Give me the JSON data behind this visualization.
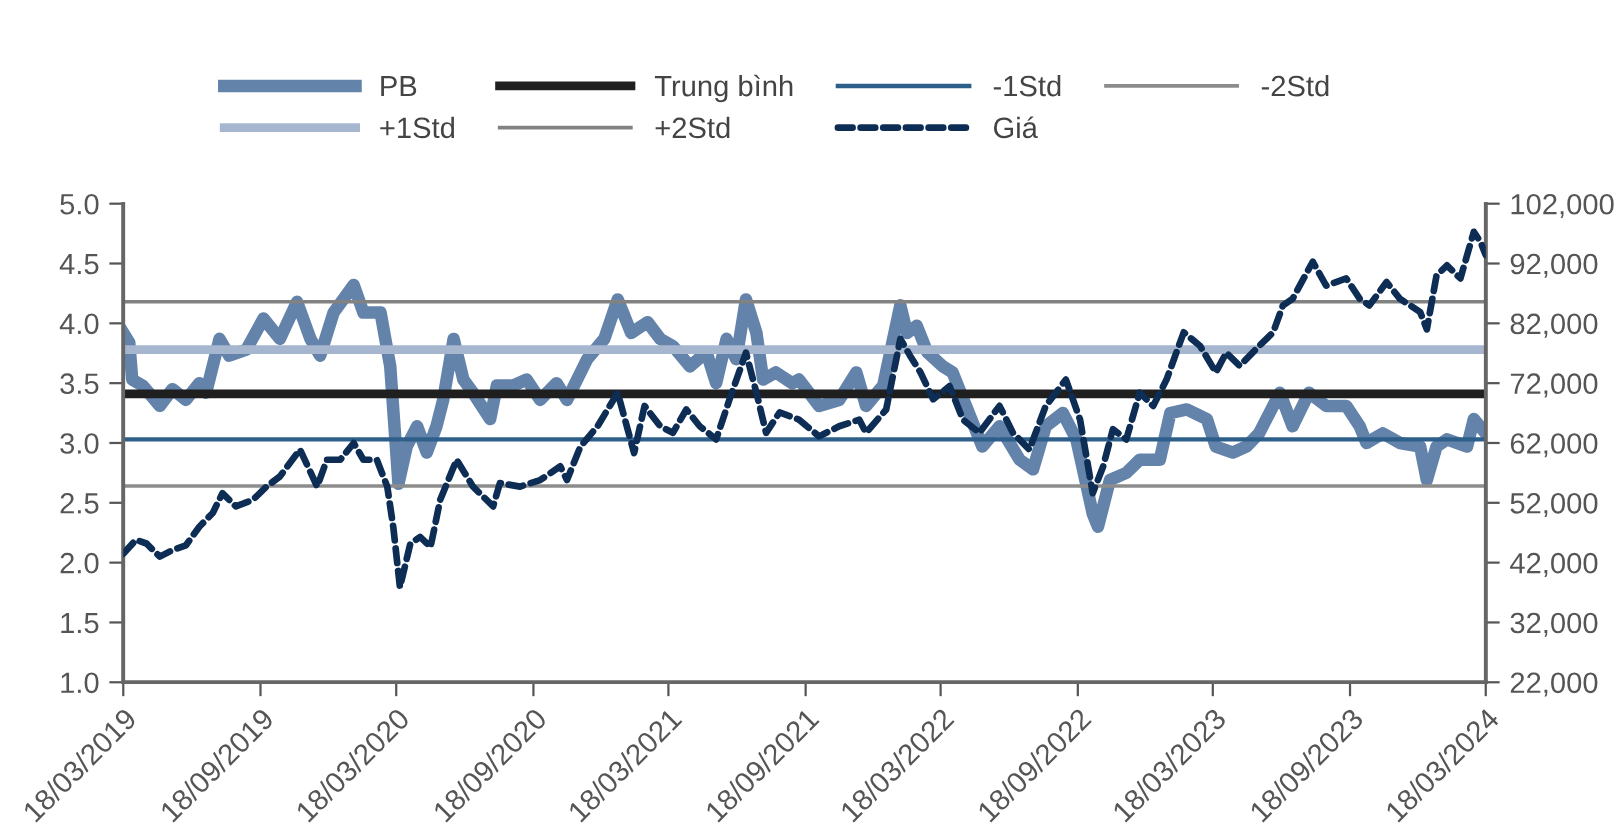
{
  "chart_data": {
    "type": "line",
    "xlim": [
      "2019-03-18",
      "2024-03-18"
    ],
    "xticks": [
      {
        "value": "2019-03-18",
        "label": "18/03/2019"
      },
      {
        "value": "2019-09-18",
        "label": "18/09/2019"
      },
      {
        "value": "2020-03-18",
        "label": "18/03/2020"
      },
      {
        "value": "2020-09-18",
        "label": "18/09/2020"
      },
      {
        "value": "2021-03-18",
        "label": "18/03/2021"
      },
      {
        "value": "2021-09-18",
        "label": "18/09/2021"
      },
      {
        "value": "2022-03-18",
        "label": "18/03/2022"
      },
      {
        "value": "2022-09-18",
        "label": "18/09/2022"
      },
      {
        "value": "2023-03-18",
        "label": "18/03/2023"
      },
      {
        "value": "2023-09-18",
        "label": "18/09/2023"
      },
      {
        "value": "2024-03-18",
        "label": "18/03/2024"
      }
    ],
    "ylim": [
      1.0,
      5.0
    ],
    "yticks": [
      {
        "value": 1.0,
        "label": "1.0"
      },
      {
        "value": 1.5,
        "label": "1.5"
      },
      {
        "value": 2.0,
        "label": "2.0"
      },
      {
        "value": 2.5,
        "label": "2.5"
      },
      {
        "value": 3.0,
        "label": "3.0"
      },
      {
        "value": 3.5,
        "label": "3.5"
      },
      {
        "value": 4.0,
        "label": "4.0"
      },
      {
        "value": 4.5,
        "label": "4.5"
      },
      {
        "value": 5.0,
        "label": "5.0"
      }
    ],
    "y2lim": [
      22000,
      102000
    ],
    "y2ticks": [
      {
        "value": 22000,
        "label": "22,000"
      },
      {
        "value": 32000,
        "label": "32,000"
      },
      {
        "value": 42000,
        "label": "42,000"
      },
      {
        "value": 52000,
        "label": "52,000"
      },
      {
        "value": 62000,
        "label": "62,000"
      },
      {
        "value": 72000,
        "label": "72,000"
      },
      {
        "value": 82000,
        "label": "82,000"
      },
      {
        "value": 92000,
        "label": "92,000"
      },
      {
        "value": 102000,
        "label": "102,000"
      }
    ],
    "grid": false,
    "legend": "top",
    "series": [
      {
        "name": "PB",
        "color": "#6383ab",
        "line_style": "solid",
        "x": [
          "2019-03-18",
          "2019-03-26",
          "2019-03-30",
          "2019-04-13",
          "2019-05-06",
          "2019-05-23",
          "2019-06-10",
          "2019-06-28",
          "2019-07-07",
          "2019-07-25",
          "2019-08-07",
          "2019-08-30",
          "2019-09-22",
          "2019-10-14",
          "2019-11-06",
          "2019-11-24",
          "2019-12-07",
          "2019-12-25",
          "2020-01-21",
          "2020-02-03",
          "2020-02-26",
          "2020-03-10",
          "2020-03-21",
          "2020-04-01",
          "2020-04-15",
          "2020-04-28",
          "2020-05-11",
          "2020-05-20",
          "2020-06-03",
          "2020-06-16",
          "2020-06-29",
          "2020-07-22",
          "2020-07-31",
          "2020-08-22",
          "2020-09-09",
          "2020-09-27",
          "2020-10-19",
          "2020-11-02",
          "2020-11-29",
          "2020-12-22",
          "2021-01-09",
          "2021-01-27",
          "2021-02-18",
          "2021-03-07",
          "2021-03-24",
          "2021-04-16",
          "2021-05-08",
          "2021-05-21",
          "2021-06-04",
          "2021-06-17",
          "2021-06-30",
          "2021-07-14",
          "2021-07-23",
          "2021-08-09",
          "2021-08-31",
          "2021-09-09",
          "2021-10-06",
          "2021-11-02",
          "2021-11-25",
          "2021-12-08",
          "2021-12-31",
          "2022-01-23",
          "2022-02-01",
          "2022-02-14",
          "2022-02-28",
          "2022-03-21",
          "2022-04-03",
          "2022-04-21",
          "2022-05-13",
          "2022-06-05",
          "2022-07-02",
          "2022-07-20",
          "2022-08-06",
          "2022-08-29",
          "2022-09-16",
          "2022-10-08",
          "2022-10-15",
          "2022-10-31",
          "2022-11-22",
          "2022-12-10",
          "2023-01-06",
          "2023-01-20",
          "2023-02-11",
          "2023-03-10",
          "2023-03-22",
          "2023-04-14",
          "2023-05-02",
          "2023-05-19",
          "2023-06-16",
          "2023-07-03",
          "2023-07-25",
          "2023-08-17",
          "2023-09-13",
          "2023-10-01",
          "2023-10-10",
          "2023-11-01",
          "2023-11-24",
          "2023-12-21",
          "2023-12-30",
          "2024-01-12",
          "2024-01-26",
          "2024-02-22",
          "2024-03-02",
          "2024-03-18"
        ],
        "values": [
          3.92,
          3.84,
          3.53,
          3.48,
          3.31,
          3.45,
          3.36,
          3.5,
          3.42,
          3.87,
          3.73,
          3.78,
          4.04,
          3.87,
          4.18,
          3.87,
          3.73,
          4.09,
          4.32,
          4.09,
          4.09,
          3.64,
          2.66,
          2.97,
          3.14,
          2.92,
          3.14,
          3.36,
          3.87,
          3.53,
          3.42,
          3.2,
          3.48,
          3.48,
          3.53,
          3.36,
          3.5,
          3.36,
          3.7,
          3.87,
          4.2,
          3.92,
          4.01,
          3.87,
          3.81,
          3.64,
          3.76,
          3.5,
          3.87,
          3.7,
          4.2,
          3.92,
          3.53,
          3.59,
          3.5,
          3.53,
          3.31,
          3.36,
          3.59,
          3.31,
          3.48,
          4.15,
          3.92,
          3.98,
          3.76,
          3.64,
          3.59,
          3.31,
          2.97,
          3.14,
          2.86,
          2.78,
          3.14,
          3.25,
          3.03,
          2.41,
          2.3,
          2.69,
          2.75,
          2.86,
          2.86,
          3.25,
          3.28,
          3.2,
          2.97,
          2.92,
          2.97,
          3.08,
          3.42,
          3.14,
          3.42,
          3.31,
          3.31,
          3.14,
          3.0,
          3.08,
          3.0,
          2.97,
          2.69,
          2.97,
          3.03,
          2.97,
          3.2,
          3.08
        ]
      },
      {
        "name": "Trung bình",
        "color": "#1f1f1f",
        "line_style": "solid",
        "x": [
          "2019-03-18",
          "2024-03-18"
        ],
        "values": [
          3.41,
          3.41
        ]
      },
      {
        "name": "-1Std",
        "color": "#2e5f8a",
        "line_style": "solid",
        "x": [
          "2019-03-18",
          "2024-03-18"
        ],
        "values": [
          3.03,
          3.03
        ]
      },
      {
        "name": "-2Std",
        "color": "#8c8c8c",
        "line_style": "solid",
        "x": [
          "2019-03-18",
          "2024-03-18"
        ],
        "values": [
          2.64,
          2.64
        ]
      },
      {
        "name": "+1Std",
        "color": "#a6b6cf",
        "line_style": "solid",
        "x": [
          "2019-03-18",
          "2024-03-18"
        ],
        "values": [
          3.78,
          3.78
        ]
      },
      {
        "name": "+2Std",
        "color": "#828282",
        "line_style": "solid",
        "x": [
          "2019-03-18",
          "2024-03-18"
        ],
        "values": [
          4.18,
          4.18
        ]
      },
      {
        "name": "Giá",
        "color": "#0d2d55",
        "line_style": "dashed",
        "axis": "y2",
        "x": [
          "2019-03-18",
          "2019-04-04",
          "2019-04-18",
          "2019-05-06",
          "2019-05-23",
          "2019-06-10",
          "2019-06-28",
          "2019-07-16",
          "2019-07-29",
          "2019-08-16",
          "2019-09-08",
          "2019-09-26",
          "2019-10-14",
          "2019-11-10",
          "2019-12-03",
          "2019-12-16",
          "2020-01-03",
          "2020-01-21",
          "2020-02-03",
          "2020-02-21",
          "2020-03-06",
          "2020-03-14",
          "2020-03-23",
          "2020-04-06",
          "2020-04-19",
          "2020-05-03",
          "2020-05-16",
          "2020-06-07",
          "2020-06-29",
          "2020-07-26",
          "2020-08-04",
          "2020-08-31",
          "2020-09-27",
          "2020-10-24",
          "2020-11-02",
          "2020-11-20",
          "2020-12-13",
          "2021-01-09",
          "2021-01-31",
          "2021-02-14",
          "2021-03-07",
          "2021-03-24",
          "2021-04-11",
          "2021-04-29",
          "2021-05-21",
          "2021-06-08",
          "2021-06-30",
          "2021-07-14",
          "2021-07-27",
          "2021-08-14",
          "2021-09-09",
          "2021-10-06",
          "2021-11-02",
          "2021-11-29",
          "2021-12-08",
          "2022-01-04",
          "2022-01-23",
          "2022-02-05",
          "2022-02-19",
          "2022-03-08",
          "2022-03-30",
          "2022-04-17",
          "2022-05-09",
          "2022-06-05",
          "2022-06-23",
          "2022-07-15",
          "2022-08-06",
          "2022-09-02",
          "2022-09-21",
          "2022-10-08",
          "2022-10-22",
          "2022-11-04",
          "2022-11-22",
          "2022-12-10",
          "2022-12-28",
          "2023-01-15",
          "2023-02-07",
          "2023-03-01",
          "2023-03-22",
          "2023-04-05",
          "2023-04-23",
          "2023-05-19",
          "2023-06-07",
          "2023-06-20",
          "2023-07-03",
          "2023-07-30",
          "2023-08-17",
          "2023-09-13",
          "2023-10-01",
          "2023-10-14",
          "2023-11-06",
          "2023-11-24",
          "2023-12-21",
          "2023-12-30",
          "2024-01-12",
          "2024-01-26",
          "2024-02-13",
          "2024-03-02",
          "2024-03-11",
          "2024-03-18"
        ],
        "values": [
          43500,
          45800,
          45200,
          43000,
          44100,
          44900,
          48000,
          50300,
          53600,
          51400,
          52500,
          54700,
          56400,
          60900,
          54700,
          59200,
          59200,
          62000,
          59200,
          59200,
          54700,
          48000,
          37900,
          45200,
          46300,
          44600,
          52500,
          59200,
          54700,
          51400,
          55300,
          54700,
          55800,
          58100,
          55800,
          61400,
          64800,
          70400,
          60300,
          68200,
          64800,
          63700,
          67600,
          64800,
          62600,
          69300,
          77100,
          70400,
          63700,
          67100,
          65900,
          63100,
          64800,
          65900,
          63700,
          67600,
          79400,
          76600,
          73800,
          69300,
          71500,
          65900,
          63700,
          68200,
          63700,
          60900,
          68200,
          72600,
          65900,
          53600,
          58100,
          64300,
          62600,
          70400,
          68200,
          72600,
          80500,
          78200,
          73800,
          77100,
          74900,
          78200,
          80500,
          85000,
          86100,
          92300,
          88300,
          89500,
          86100,
          85000,
          88900,
          86100,
          83900,
          81000,
          90000,
          91700,
          89500,
          97300,
          95600,
          93400
        ]
      }
    ]
  }
}
